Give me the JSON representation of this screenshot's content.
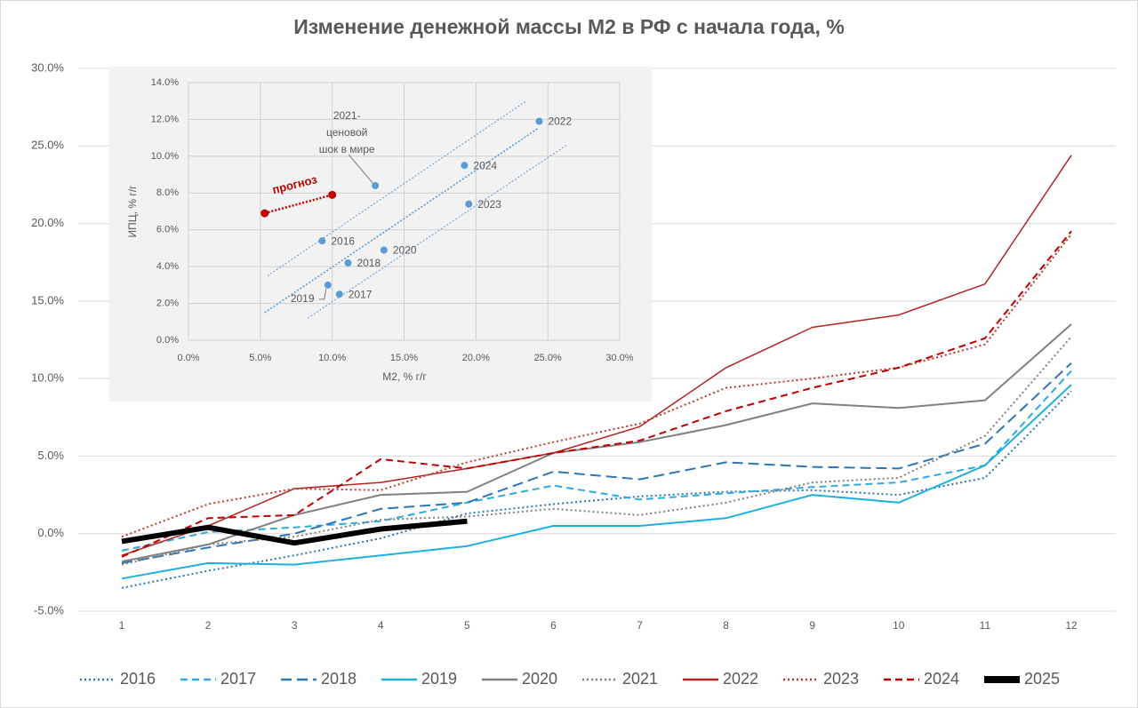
{
  "chart_data": [
    {
      "type": "line",
      "title": "Изменение денежной массы М2 в РФ с начала года, %",
      "categories": [
        "1",
        "2",
        "3",
        "4",
        "5",
        "6",
        "7",
        "8",
        "9",
        "10",
        "11",
        "12"
      ],
      "ylim": [
        -5,
        30
      ],
      "yticks": [
        {
          "value": -5,
          "label": "-5.0%"
        },
        {
          "value": 0,
          "label": "0.0%"
        },
        {
          "value": 5,
          "label": "5.0%"
        },
        {
          "value": 10,
          "label": "10.0%"
        },
        {
          "value": 15,
          "label": "15.0%"
        },
        {
          "value": 20,
          "label": "20.0%"
        },
        {
          "value": 25,
          "label": "25.0%"
        },
        {
          "value": 30,
          "label": "30.0%"
        }
      ],
      "grid": true,
      "legend": "bottom",
      "series": [
        {
          "name": "2016",
          "color": "#2e75b6",
          "style": "dotted",
          "width": 2,
          "values": [
            -3.5,
            -2.4,
            -1.4,
            -0.3,
            1.3,
            1.9,
            2.4,
            2.7,
            2.8,
            2.5,
            3.6,
            9.2
          ]
        },
        {
          "name": "2017",
          "color": "#2eaadc",
          "style": "dashed",
          "width": 2,
          "values": [
            -1.1,
            0.1,
            0.4,
            0.8,
            2.0,
            3.1,
            2.2,
            2.6,
            3.0,
            3.3,
            4.4,
            10.5
          ]
        },
        {
          "name": "2018",
          "color": "#2e75b6",
          "style": "longdash",
          "width": 2,
          "values": [
            -1.9,
            -0.9,
            0.0,
            1.6,
            2.0,
            4.0,
            3.5,
            4.6,
            4.3,
            4.2,
            5.8,
            11.0
          ]
        },
        {
          "name": "2019",
          "color": "#1fb0e0",
          "style": "solid",
          "width": 2,
          "values": [
            -2.9,
            -1.9,
            -2.0,
            -1.4,
            -0.8,
            0.5,
            0.5,
            1.0,
            2.5,
            2.0,
            4.4,
            9.6
          ]
        },
        {
          "name": "2020",
          "color": "#808080",
          "style": "solid",
          "width": 2,
          "values": [
            -1.8,
            -0.7,
            1.2,
            2.5,
            2.7,
            5.2,
            5.9,
            7.0,
            8.4,
            8.1,
            8.6,
            13.5
          ]
        },
        {
          "name": "2021",
          "color": "#808080",
          "style": "dotted",
          "width": 2,
          "values": [
            -2.0,
            -0.7,
            -0.2,
            0.9,
            1.1,
            1.6,
            1.2,
            2.0,
            3.3,
            3.6,
            6.3,
            12.7
          ]
        },
        {
          "name": "2022",
          "color": "#b22222",
          "style": "solid",
          "width": 1.5,
          "values": [
            -1.4,
            0.5,
            2.9,
            3.3,
            4.2,
            5.2,
            6.9,
            10.7,
            13.3,
            14.1,
            16.1,
            24.4
          ]
        },
        {
          "name": "2023",
          "color": "#c0392b",
          "style": "dotted",
          "width": 2,
          "values": [
            -0.2,
            1.9,
            2.9,
            2.8,
            4.6,
            5.9,
            7.1,
            9.4,
            10.0,
            10.7,
            12.2,
            19.3
          ]
        },
        {
          "name": "2024",
          "color": "#c00000",
          "style": "dashed",
          "width": 2,
          "values": [
            -1.5,
            1.0,
            1.2,
            4.8,
            4.2,
            5.2,
            6.0,
            7.9,
            9.4,
            10.7,
            12.6,
            19.5
          ]
        },
        {
          "name": "2025",
          "color": "#000000",
          "style": "solid",
          "width": 6,
          "values": [
            -0.5,
            0.4,
            -0.6,
            0.3,
            0.8,
            null,
            null,
            null,
            null,
            null,
            null,
            null
          ]
        }
      ]
    },
    {
      "type": "scatter",
      "x_label": "М2, % г/г",
      "y_label": "ИПЦ, % г/г",
      "xlim": [
        0,
        30
      ],
      "xticks": [
        {
          "value": 0,
          "label": "0.0%"
        },
        {
          "value": 5,
          "label": "5.0%"
        },
        {
          "value": 10,
          "label": "10.0%"
        },
        {
          "value": 15,
          "label": "15.0%"
        },
        {
          "value": 20,
          "label": "20.0%"
        },
        {
          "value": 25,
          "label": "25.0%"
        },
        {
          "value": 30,
          "label": "30.0%"
        }
      ],
      "ylim": [
        0,
        14
      ],
      "yticks": [
        {
          "value": 0,
          "label": "0.0%"
        },
        {
          "value": 2,
          "label": "2.0%"
        },
        {
          "value": 4,
          "label": "4.0%"
        },
        {
          "value": 6,
          "label": "6.0%"
        },
        {
          "value": 8,
          "label": "8.0%"
        },
        {
          "value": 10,
          "label": "10.0%"
        },
        {
          "value": 12,
          "label": "12.0%"
        },
        {
          "value": 14,
          "label": "14.0%"
        }
      ],
      "grid": true,
      "color": "#5b9bd5",
      "points": {
        "labels": [
          "2022",
          "2024",
          "2023",
          "2021",
          "2016",
          "2020",
          "2018",
          "2019",
          "2017"
        ],
        "x": [
          24.4,
          19.2,
          19.5,
          13.0,
          9.3,
          13.6,
          11.1,
          9.7,
          10.5
        ],
        "y": [
          11.9,
          9.5,
          7.4,
          8.4,
          5.4,
          4.9,
          4.2,
          3.0,
          2.5
        ]
      },
      "annotation": [
        "2021-",
        "ценовой",
        "шок в мире"
      ],
      "forecast": {
        "name": "прогноз",
        "color": "#c00000",
        "x": [
          5.3,
          10.0
        ],
        "y": [
          6.9,
          7.9
        ]
      },
      "trendlines": [
        {
          "x": [
            5.3,
            24.3
          ],
          "y": [
            1.5,
            11.5
          ]
        },
        {
          "x": [
            5.5,
            23.5
          ],
          "y": [
            3.5,
            13.0
          ]
        },
        {
          "x": [
            8.3,
            26.3
          ],
          "y": [
            1.2,
            10.6
          ]
        }
      ]
    }
  ]
}
